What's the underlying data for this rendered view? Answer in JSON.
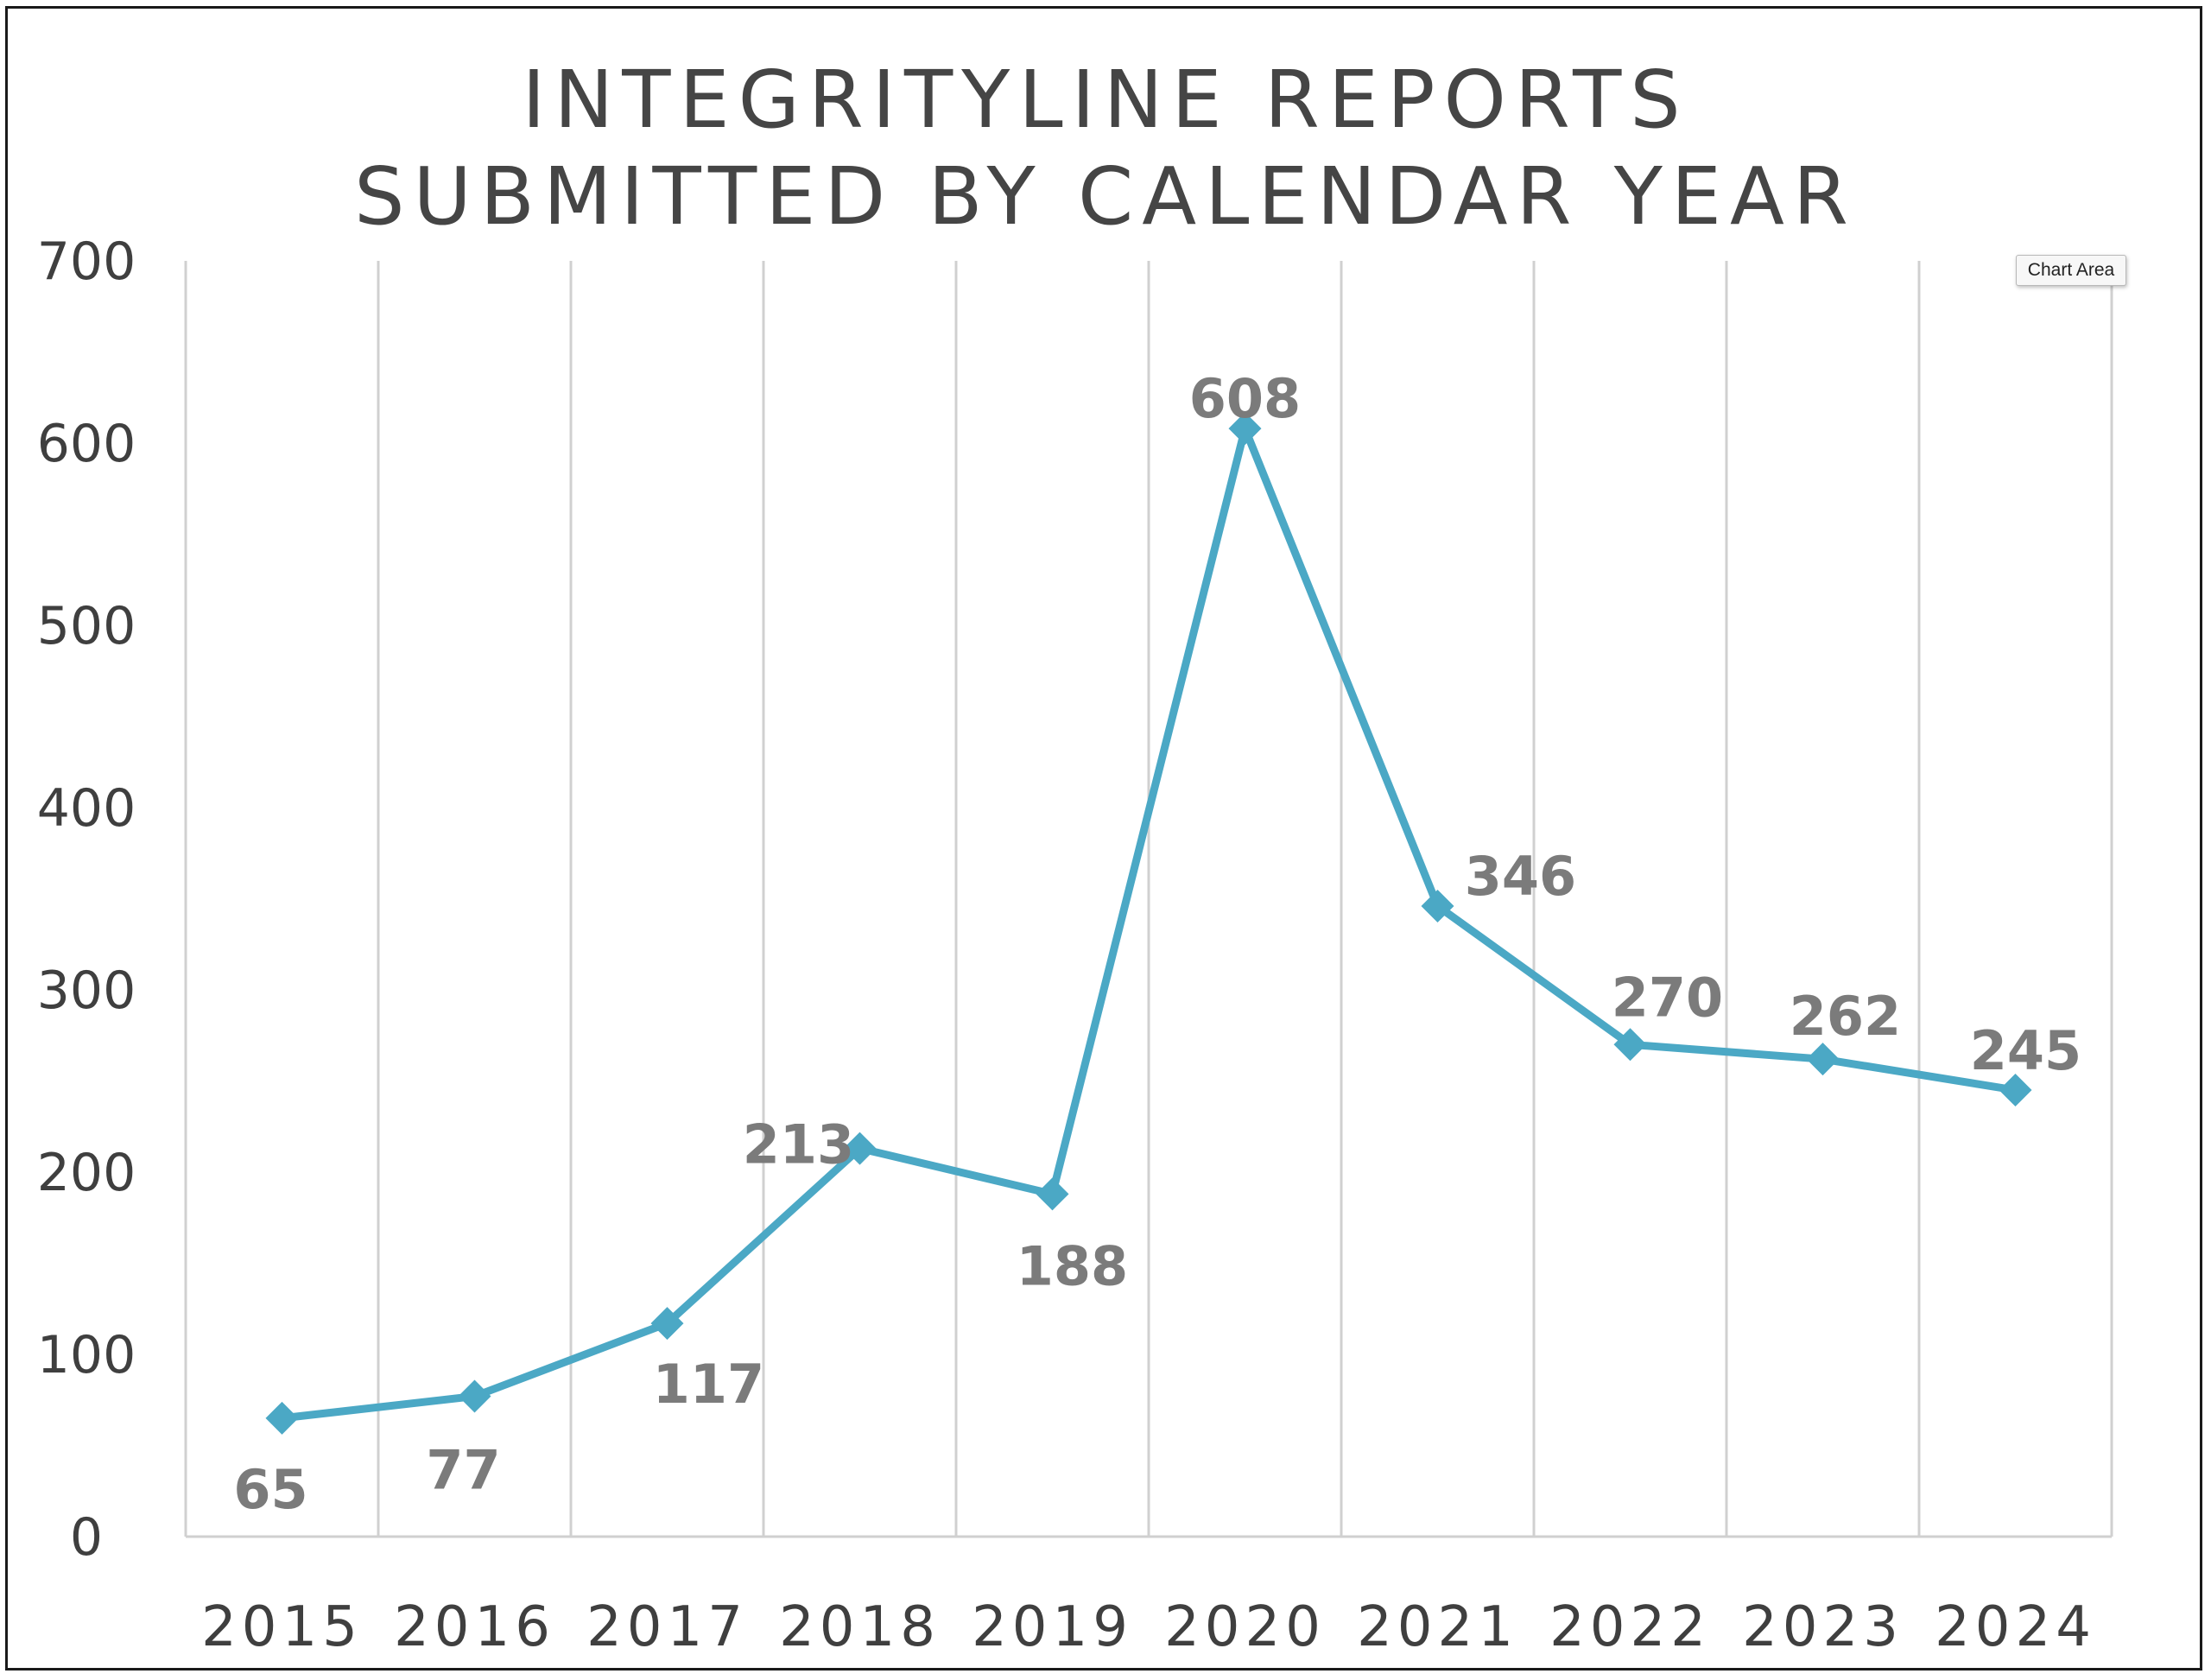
{
  "chart_data": {
    "type": "line",
    "title_lines": [
      "INTEGRITYLINE REPORTS",
      "SUBMITTED BY CALENDAR YEAR"
    ],
    "categories": [
      "2015",
      "2016",
      "2017",
      "2018",
      "2019",
      "2020",
      "2021",
      "2022",
      "2023",
      "2024"
    ],
    "series": [
      {
        "values": [
          65,
          77,
          117,
          213,
          188,
          608,
          346,
          270,
          262,
          245
        ],
        "color": "#4BA8C5",
        "marker": "diamond"
      }
    ],
    "data_labels": [
      "65",
      "77",
      "117",
      "213",
      "188",
      "608",
      "346",
      "270",
      "262",
      "245"
    ],
    "yticks": [
      "0",
      "100",
      "200",
      "300",
      "400",
      "500",
      "600",
      "700"
    ],
    "ylim": [
      0,
      700
    ],
    "grid": "vertical",
    "gridline_color": "#d0d0d0",
    "label_color": "#7b7b7b"
  },
  "tooltip": {
    "label": "Chart Area"
  }
}
